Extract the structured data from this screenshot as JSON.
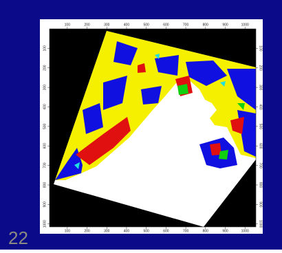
{
  "chart_data": {
    "type": "raster",
    "xlim": [
      10,
      1055
    ],
    "xticks": [
      100,
      200,
      300,
      400,
      500,
      600,
      700,
      800,
      900,
      1000
    ],
    "ylim": [
      1015,
      0
    ],
    "yticks": [
      100,
      200,
      300,
      400,
      500,
      600,
      700,
      800,
      900,
      1000
    ]
  },
  "slide_number": "22"
}
